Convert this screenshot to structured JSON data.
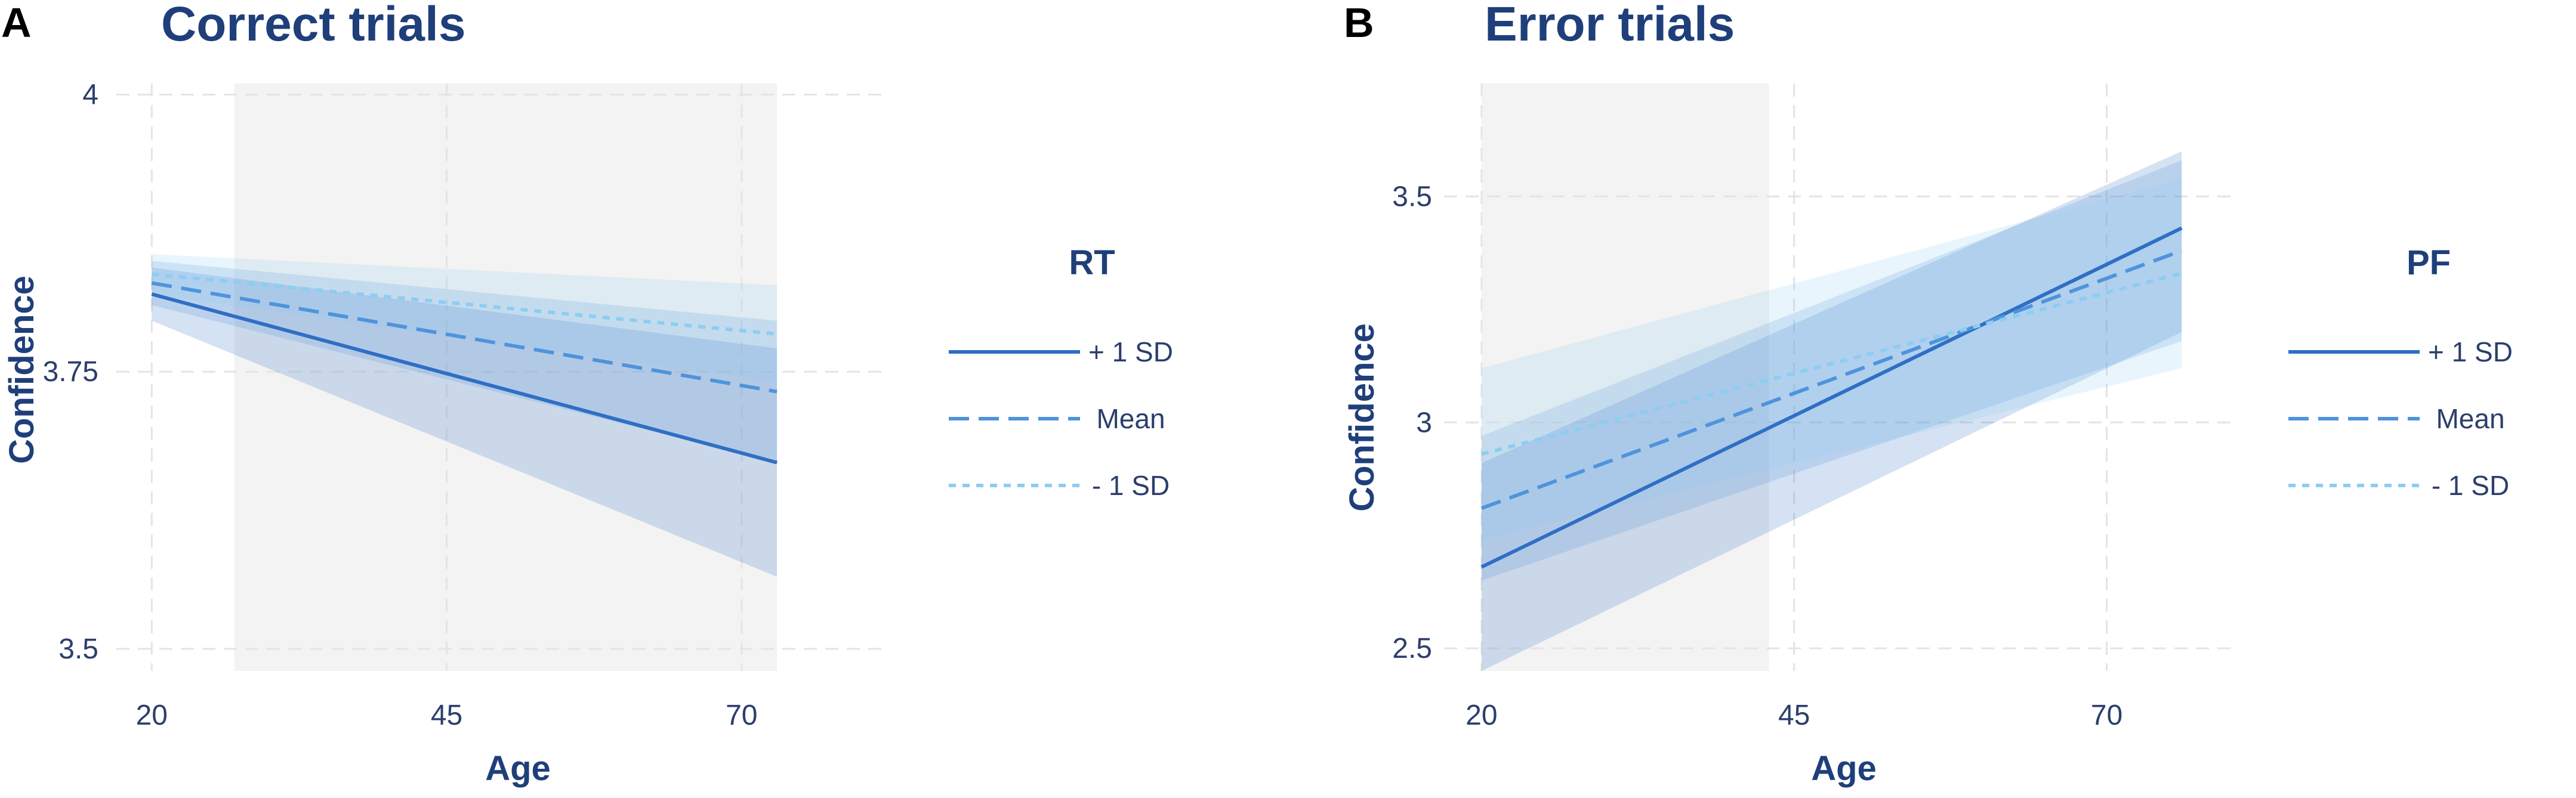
{
  "chart_data": [
    {
      "type": "line",
      "panel_label": "A",
      "title": "Correct trials",
      "xlabel": "Age",
      "ylabel": "Confidence",
      "xlim": [
        17,
        82
      ],
      "ylim": [
        3.48,
        4.01
      ],
      "xticks": [
        20,
        45,
        70
      ],
      "yticks": [
        3.5,
        3.75,
        4
      ],
      "ytick_labels": [
        "3.5",
        "3.75",
        "4"
      ],
      "highlight_band": {
        "x_from": 27,
        "x_to": 73
      },
      "grid": true,
      "legend": {
        "title": "RT",
        "placement": "right"
      },
      "x": [
        20,
        73
      ],
      "series": [
        {
          "name": "+ 1 SD",
          "style": "solid",
          "color": "#2f6fc4",
          "values": [
            3.82,
            3.668
          ],
          "ci_lower": [
            3.796,
            3.565
          ],
          "ci_upper": [
            3.844,
            3.771
          ]
        },
        {
          "name": "Mean",
          "style": "dashed",
          "color": "#4e93dc",
          "values": [
            3.83,
            3.732
          ],
          "ci_lower": [
            3.81,
            3.668
          ],
          "ci_upper": [
            3.85,
            3.796
          ]
        },
        {
          "name": "- 1 SD",
          "style": "dotted",
          "color": "#8dcdf2",
          "values": [
            3.838,
            3.784
          ],
          "ci_lower": [
            3.82,
            3.74
          ],
          "ci_upper": [
            3.856,
            3.828
          ]
        }
      ]
    },
    {
      "type": "line",
      "panel_label": "B",
      "title": "Error trials",
      "xlabel": "Age",
      "ylabel": "Confidence",
      "xlim": [
        17,
        80
      ],
      "ylim": [
        2.45,
        3.75
      ],
      "xticks": [
        20,
        45,
        70
      ],
      "yticks": [
        2.5,
        3,
        3.5
      ],
      "ytick_labels": [
        "2.5",
        "3",
        "3.5"
      ],
      "highlight_band": {
        "x_from": 20,
        "x_to": 43
      },
      "grid": true,
      "legend": {
        "title": "PF",
        "placement": "right"
      },
      "x": [
        20,
        76
      ],
      "series": [
        {
          "name": "+ 1 SD",
          "style": "solid",
          "color": "#2f6fc4",
          "values": [
            2.68,
            3.43
          ],
          "ci_lower": [
            2.45,
            3.2
          ],
          "ci_upper": [
            2.91,
            3.6
          ]
        },
        {
          "name": "Mean",
          "style": "dashed",
          "color": "#4e93dc",
          "values": [
            2.81,
            3.38
          ],
          "ci_lower": [
            2.65,
            3.18
          ],
          "ci_upper": [
            2.97,
            3.58
          ]
        },
        {
          "name": "- 1 SD",
          "style": "dotted",
          "color": "#8dcdf2",
          "values": [
            2.93,
            3.33
          ],
          "ci_lower": [
            2.74,
            3.12
          ],
          "ci_upper": [
            3.12,
            3.54
          ]
        }
      ]
    }
  ]
}
